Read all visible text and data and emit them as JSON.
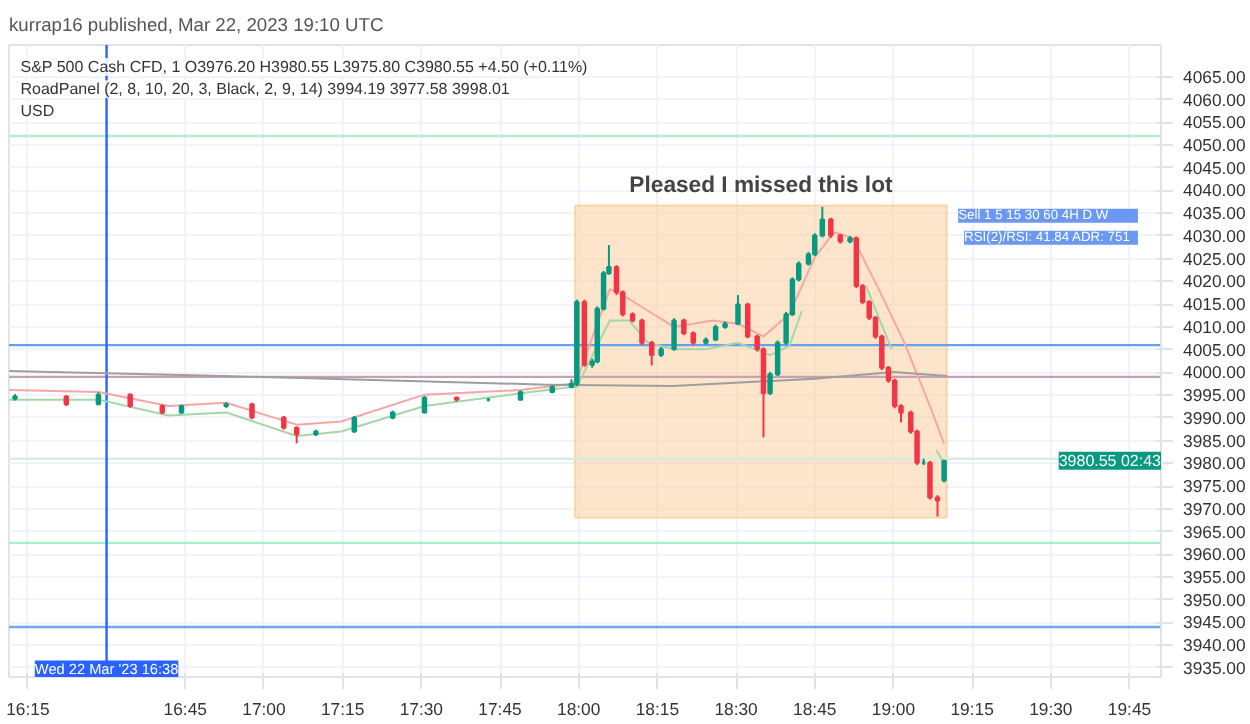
{
  "chart_data": {
    "type": "candlestick",
    "title": "kurrap16 published, Mar 22, 2023 19:10 UTC",
    "annotations": [
      "S&P 500 Cash CFD, 1   O3976.20 H3980.55 L3975.80 C3980.55 +4.50 (+0.11%)",
      "RoadPanel (2, 8, 10, 20, 3, Black, 2, 9, 14)  3994.19  3977.58  3998.01",
      "USD",
      "Sell  1  5  15  30  60  4H  D  W",
      "RSI(2)/RSI: 41.84   ADR: 751",
      {
        "text": "3980.55 02:43",
        "x": 19.85,
        "y": 3980.55
      }
    ],
    "x": [
      16.209,
      16.372,
      16.474,
      16.575,
      16.677,
      16.738,
      16.88,
      16.962,
      17.063,
      17.104,
      17.165,
      17.287,
      17.409,
      17.51,
      17.612,
      17.713,
      17.815,
      17.916,
      17.977,
      17.994,
      18.018,
      18.043,
      18.059,
      18.079,
      18.096,
      18.12,
      18.14,
      18.171,
      18.201,
      18.232,
      18.262,
      18.303,
      18.334,
      18.364,
      18.404,
      18.435,
      18.465,
      18.506,
      18.537,
      18.567,
      18.587,
      18.608,
      18.632,
      18.659,
      18.679,
      18.699,
      18.73,
      18.75,
      18.774,
      18.801,
      18.831,
      18.862,
      18.882,
      18.902,
      18.923,
      18.943,
      18.963,
      18.984,
      19.004,
      19.024,
      19.055,
      19.075,
      19.096,
      19.116,
      19.14,
      19.161
    ],
    "ohlc": [
      [
        3994.2,
        3995.2,
        3993.8,
        3994.7
      ],
      [
        3994.7,
        3995.0,
        3992.6,
        3993.0
      ],
      [
        3993.0,
        3995.6,
        3992.8,
        3995.1
      ],
      [
        3995.1,
        3995.4,
        3992.2,
        3992.6
      ],
      [
        3992.6,
        3993.0,
        3990.8,
        3991.2
      ],
      [
        3991.2,
        3992.9,
        3990.9,
        3992.6
      ],
      [
        3992.6,
        3993.4,
        3992.2,
        3993.0
      ],
      [
        3993.0,
        3993.3,
        3989.7,
        3990.1
      ],
      [
        3990.1,
        3990.4,
        3987.4,
        3987.8
      ],
      [
        3987.8,
        3988.1,
        3984.4,
        3986.4
      ],
      [
        3986.4,
        3987.4,
        3986.0,
        3987.0
      ],
      [
        3987.0,
        3990.4,
        3986.7,
        3990.0
      ],
      [
        3990.0,
        3991.6,
        3989.7,
        3991.2
      ],
      [
        3991.2,
        3994.8,
        3991.0,
        3994.4
      ],
      [
        3994.4,
        3994.7,
        3993.6,
        3994.0
      ],
      [
        3994.0,
        3994.4,
        3993.6,
        3994.0
      ],
      [
        3994.0,
        3996.0,
        3993.8,
        3995.7
      ],
      [
        3995.7,
        3997.2,
        3995.4,
        3996.8
      ],
      [
        3996.8,
        3998.5,
        3996.5,
        3997.5
      ],
      [
        3997.5,
        4016.0,
        3997.0,
        4015.5
      ],
      [
        4015.5,
        4016.0,
        4001.2,
        4001.7
      ],
      [
        4001.7,
        4003.0,
        4001.0,
        4002.4
      ],
      [
        4002.4,
        4014.5,
        4002.0,
        4014.0
      ],
      [
        4014.0,
        4022.3,
        4013.6,
        4021.8
      ],
      [
        4021.8,
        4028.0,
        4021.5,
        4023.2
      ],
      [
        4023.2,
        4023.6,
        4017.0,
        4017.6
      ],
      [
        4017.6,
        4018.0,
        4012.3,
        4012.8
      ],
      [
        4012.8,
        4013.2,
        4011.0,
        4011.4
      ],
      [
        4011.4,
        4011.8,
        4006.0,
        4006.5
      ],
      [
        4006.5,
        4006.9,
        4001.5,
        4003.8
      ],
      [
        4003.8,
        4005.6,
        4003.4,
        4005.1
      ],
      [
        4005.1,
        4011.9,
        4004.8,
        4011.4
      ],
      [
        4011.4,
        4011.8,
        4008.2,
        4008.6
      ],
      [
        4008.6,
        4009.0,
        4006.0,
        4006.5
      ],
      [
        4006.5,
        4007.7,
        4006.1,
        4007.2
      ],
      [
        4007.2,
        4010.5,
        4006.9,
        4010.0
      ],
      [
        4010.0,
        4011.2,
        4009.6,
        4010.7
      ],
      [
        4010.7,
        4017.0,
        4010.4,
        4014.9
      ],
      [
        4014.9,
        4015.3,
        4007.5,
        4007.9
      ],
      [
        4007.9,
        4008.3,
        4004.6,
        4005.1
      ],
      [
        4005.1,
        4005.5,
        3985.7,
        3995.4
      ],
      [
        3995.4,
        4000.1,
        3995.0,
        3999.6
      ],
      [
        3999.6,
        4007.0,
        3999.2,
        4006.5
      ],
      [
        4006.5,
        4013.3,
        4006.1,
        4012.8
      ],
      [
        4012.8,
        4020.9,
        4012.4,
        4020.4
      ],
      [
        4020.4,
        4024.4,
        4020.0,
        4023.9
      ],
      [
        4023.9,
        4026.5,
        4023.5,
        4026.0
      ],
      [
        4026.0,
        4030.6,
        4025.6,
        4030.1
      ],
      [
        4030.1,
        4036.4,
        4029.7,
        4033.6
      ],
      [
        4033.6,
        4034.0,
        4029.6,
        4030.1
      ],
      [
        4030.1,
        4030.5,
        4028.3,
        4028.8
      ],
      [
        4028.8,
        4030.0,
        4028.4,
        4029.5
      ],
      [
        4029.5,
        4029.9,
        4018.5,
        4019.0
      ],
      [
        4019.0,
        4019.4,
        4015.0,
        4015.5
      ],
      [
        4015.5,
        4015.9,
        4011.5,
        4012.0
      ],
      [
        4012.0,
        4012.4,
        4007.4,
        4007.9
      ],
      [
        4007.9,
        4008.3,
        4000.5,
        4001.0
      ],
      [
        4001.0,
        4001.4,
        3997.7,
        3998.2
      ],
      [
        3998.2,
        3998.6,
        3992.1,
        3992.6
      ],
      [
        3992.6,
        3993.0,
        3989.0,
        3991.2
      ],
      [
        3991.2,
        3991.6,
        3986.5,
        3987.0
      ],
      [
        3987.0,
        3987.4,
        3979.6,
        3980.1
      ],
      [
        3980.1,
        3981.0,
        3979.6,
        3980.1
      ],
      [
        3980.1,
        3980.5,
        3972.0,
        3972.5
      ],
      [
        3972.5,
        3973.0,
        3968.3,
        3971.8
      ],
      [
        3976.2,
        3980.55,
        3975.8,
        3980.55
      ]
    ],
    "colors": [
      "#089981",
      "#f23645",
      "#089981",
      "#f23645",
      "#f23645",
      "#089981",
      "#089981",
      "#f23645",
      "#f23645",
      "#f23645",
      "#089981",
      "#089981",
      "#089981",
      "#089981",
      "#f23645",
      "#089981",
      "#089981",
      "#089981",
      "#089981",
      "#089981",
      "#f23645",
      "#089981",
      "#089981",
      "#089981",
      "#089981",
      "#f23645",
      "#f23645",
      "#f23645",
      "#f23645",
      "#f23645",
      "#089981",
      "#089981",
      "#f23645",
      "#f23645",
      "#089981",
      "#089981",
      "#089981",
      "#089981",
      "#f23645",
      "#f23645",
      "#f23645",
      "#089981",
      "#089981",
      "#089981",
      "#089981",
      "#089981",
      "#089981",
      "#089981",
      "#089981",
      "#f23645",
      "#f23645",
      "#089981",
      "#f23645",
      "#f23645",
      "#f23645",
      "#f23645",
      "#f23645",
      "#f23645",
      "#f23645",
      "#f23645",
      "#f23645",
      "#f23645",
      "#089981",
      "#f23645",
      "#f23645",
      "#089981"
    ],
    "series": [
      {
        "type": "line",
        "color": "#f7a5a5",
        "x": [
          16.19,
          16.474,
          16.697,
          16.88,
          17.104,
          17.246,
          17.51,
          17.815,
          17.977,
          17.994,
          18.099,
          18.14,
          18.221,
          18.303,
          18.425,
          18.506,
          18.587,
          18.669,
          18.75,
          18.811,
          18.872,
          18.953,
          19.035,
          19.116,
          19.161
        ],
        "values": [
          3996.1,
          3995.7,
          3992.6,
          3993.3,
          3988.5,
          3989.2,
          3995.1,
          3996.1,
          3997.5,
          3998.3,
          4018.3,
          4017.0,
          4013.5,
          4010.0,
          4011.4,
          4010.7,
          4007.9,
          4012.8,
          4025.3,
          4030.8,
          4029.5,
          4018.3,
          4006.5,
          3992.6,
          3984.3
        ]
      },
      {
        "type": "line",
        "color": "#a5d6a7",
        "x": [
          16.19,
          16.474,
          16.697,
          16.88,
          17.104,
          17.246,
          17.51,
          17.815,
          17.977,
          17.994,
          18.099,
          18.16,
          18.221,
          18.303,
          18.404,
          18.506,
          18.608,
          18.669,
          18.709,
          18.77,
          18.852,
          18.913,
          18.994,
          19.075,
          19.136,
          19.161
        ],
        "values": [
          3994.0,
          3994.0,
          3990.5,
          3991.2,
          3986.0,
          3987.0,
          3992.6,
          3995.4,
          3996.8,
          3996.8,
          4011.4,
          4011.4,
          4006.5,
          4005.1,
          4005.1,
          4006.5,
          4003.8,
          4005.8,
          4013.5,
          null,
          null,
          4019.0,
          4005.1,
          null,
          3982.9,
          3980.1
        ]
      },
      {
        "type": "line",
        "color": "#9e9e9e",
        "x": [
          16.19,
          16.87,
          17.9,
          18.3,
          18.75,
          19.0,
          19.17
        ],
        "values": [
          4000.3,
          3999.2,
          3997.3,
          3997.0,
          3998.6,
          4000.1,
          3999.2
        ]
      }
    ],
    "bands": [
      {
        "axis": "x",
        "from": 17.988,
        "to": 19.17,
        "color": "#fbd3a8",
        "label": "Pleased I missed this lot"
      }
    ],
    "ref_lines": [
      {
        "axis": "y",
        "value": 4052,
        "color": "#b2ebcf"
      },
      {
        "axis": "y",
        "value": 4006,
        "color": "#64a0f0"
      },
      {
        "axis": "y",
        "value": 3999,
        "color": "#c8a0b4"
      },
      {
        "axis": "y",
        "value": 3981,
        "color": "#d8ece4"
      },
      {
        "axis": "y",
        "value": 3962.5,
        "color": "#a8f0c8"
      },
      {
        "axis": "y",
        "value": 3944,
        "color": "#6fa8f0"
      },
      {
        "axis": "x",
        "value": 16.5,
        "color": "#2962ff",
        "label": "Wed 22 Mar '23 16:38"
      }
    ],
    "xlim": [
      16.19,
      19.85
    ],
    "ylim": [
      3933,
      4072
    ],
    "xticks": [
      {
        "value": 16.25,
        "label": "16:15"
      },
      {
        "value": 16.75,
        "label": "16:45"
      },
      {
        "value": 17,
        "label": "17:00"
      },
      {
        "value": 17.25,
        "label": "17:15"
      },
      {
        "value": 17.5,
        "label": "17:30"
      },
      {
        "value": 17.75,
        "label": "17:45"
      },
      {
        "value": 18,
        "label": "18:00"
      },
      {
        "value": 18.25,
        "label": "18:15"
      },
      {
        "value": 18.5,
        "label": "18:30"
      },
      {
        "value": 18.75,
        "label": "18:45"
      },
      {
        "value": 19,
        "label": "19:00"
      },
      {
        "value": 19.25,
        "label": "19:15"
      },
      {
        "value": 19.5,
        "label": "19:30"
      },
      {
        "value": 19.75,
        "label": "19:45"
      }
    ],
    "yticks": [
      {
        "value": 3935,
        "label": "3935.00"
      },
      {
        "value": 3940,
        "label": "3940.00"
      },
      {
        "value": 3945,
        "label": "3945.00"
      },
      {
        "value": 3950,
        "label": "3950.00"
      },
      {
        "value": 3955,
        "label": "3955.00"
      },
      {
        "value": 3960,
        "label": "3960.00"
      },
      {
        "value": 3965,
        "label": "3965.00"
      },
      {
        "value": 3970,
        "label": "3970.00"
      },
      {
        "value": 3975,
        "label": "3975.00"
      },
      {
        "value": 3980,
        "label": "3980.00"
      },
      {
        "value": 3985,
        "label": "3985.00"
      },
      {
        "value": 3990,
        "label": "3990.00"
      },
      {
        "value": 3995,
        "label": "3995.00"
      },
      {
        "value": 4000,
        "label": "4000.00"
      },
      {
        "value": 4005,
        "label": "4005.00"
      },
      {
        "value": 4010,
        "label": "4010.00"
      },
      {
        "value": 4015,
        "label": "4015.00"
      },
      {
        "value": 4020,
        "label": "4020.00"
      },
      {
        "value": 4025,
        "label": "4025.00"
      },
      {
        "value": 4030,
        "label": "4030.00"
      },
      {
        "value": 4035,
        "label": "4035.00"
      },
      {
        "value": 4040,
        "label": "4040.00"
      },
      {
        "value": 4045,
        "label": "4045.00"
      },
      {
        "value": 4050,
        "label": "4050.00"
      },
      {
        "value": 4055,
        "label": "4055.00"
      },
      {
        "value": 4060,
        "label": "4060.00"
      },
      {
        "value": 4065,
        "label": "4065.00"
      }
    ],
    "grid": true
  }
}
